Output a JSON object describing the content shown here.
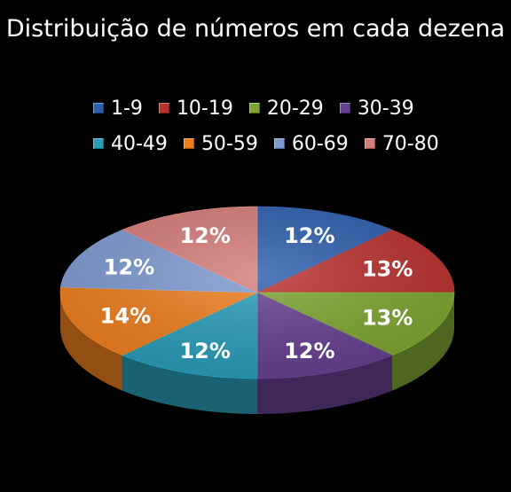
{
  "chart_data": {
    "type": "pie",
    "title": "Distribuição de números em cada dezena",
    "categories": [
      "1-9",
      "10-19",
      "20-29",
      "30-39",
      "40-49",
      "50-59",
      "60-69",
      "70-80"
    ],
    "values": [
      12,
      13,
      13,
      12,
      12,
      14,
      12,
      12
    ],
    "data_labels": [
      "12%",
      "13%",
      "13%",
      "12%",
      "12%",
      "14%",
      "12%",
      "12%"
    ],
    "colors": [
      "#2F5FAD",
      "#B8312E",
      "#7EA532",
      "#66418F",
      "#2A9CB8",
      "#EC7E1F",
      "#7F9AD0",
      "#D57D7A"
    ],
    "legend_position": "top",
    "style": "3d-exploded-pie"
  }
}
